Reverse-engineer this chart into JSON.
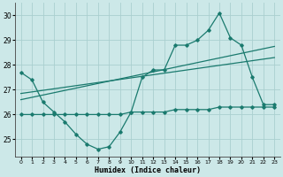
{
  "xlabel": "Humidex (Indice chaleur)",
  "x": [
    0,
    1,
    2,
    3,
    4,
    5,
    6,
    7,
    8,
    9,
    10,
    11,
    12,
    13,
    14,
    15,
    16,
    17,
    18,
    19,
    20,
    21,
    22,
    23
  ],
  "y_main": [
    27.7,
    27.4,
    26.5,
    26.1,
    25.7,
    25.2,
    24.8,
    24.6,
    24.7,
    25.3,
    26.1,
    27.5,
    27.8,
    27.8,
    28.8,
    28.8,
    29.0,
    29.4,
    30.1,
    29.1,
    28.8,
    27.5,
    26.4,
    26.4
  ],
  "y_flat": [
    26.0,
    26.0,
    26.0,
    26.0,
    26.0,
    26.0,
    26.0,
    26.0,
    26.0,
    26.0,
    26.1,
    26.1,
    26.1,
    26.1,
    26.2,
    26.2,
    26.2,
    26.2,
    26.3,
    26.3,
    26.3,
    26.3,
    26.3,
    26.3
  ],
  "trend1_x": [
    0,
    23
  ],
  "trend1_y": [
    26.85,
    28.3
  ],
  "trend2_x": [
    0,
    23
  ],
  "trend2_y": [
    26.6,
    28.75
  ],
  "main_color": "#1a7a6e",
  "flat_color": "#1a7a6e",
  "trend_color": "#1a7a6e",
  "bg_color": "#cce8e8",
  "grid_color": "#aacfcf",
  "ylim": [
    24.3,
    30.5
  ],
  "xlim": [
    -0.5,
    23.5
  ],
  "yticks": [
    25,
    26,
    27,
    28,
    29,
    30
  ],
  "xticks": [
    0,
    1,
    2,
    3,
    4,
    5,
    6,
    7,
    8,
    9,
    10,
    11,
    12,
    13,
    14,
    15,
    16,
    17,
    18,
    19,
    20,
    21,
    22,
    23
  ]
}
